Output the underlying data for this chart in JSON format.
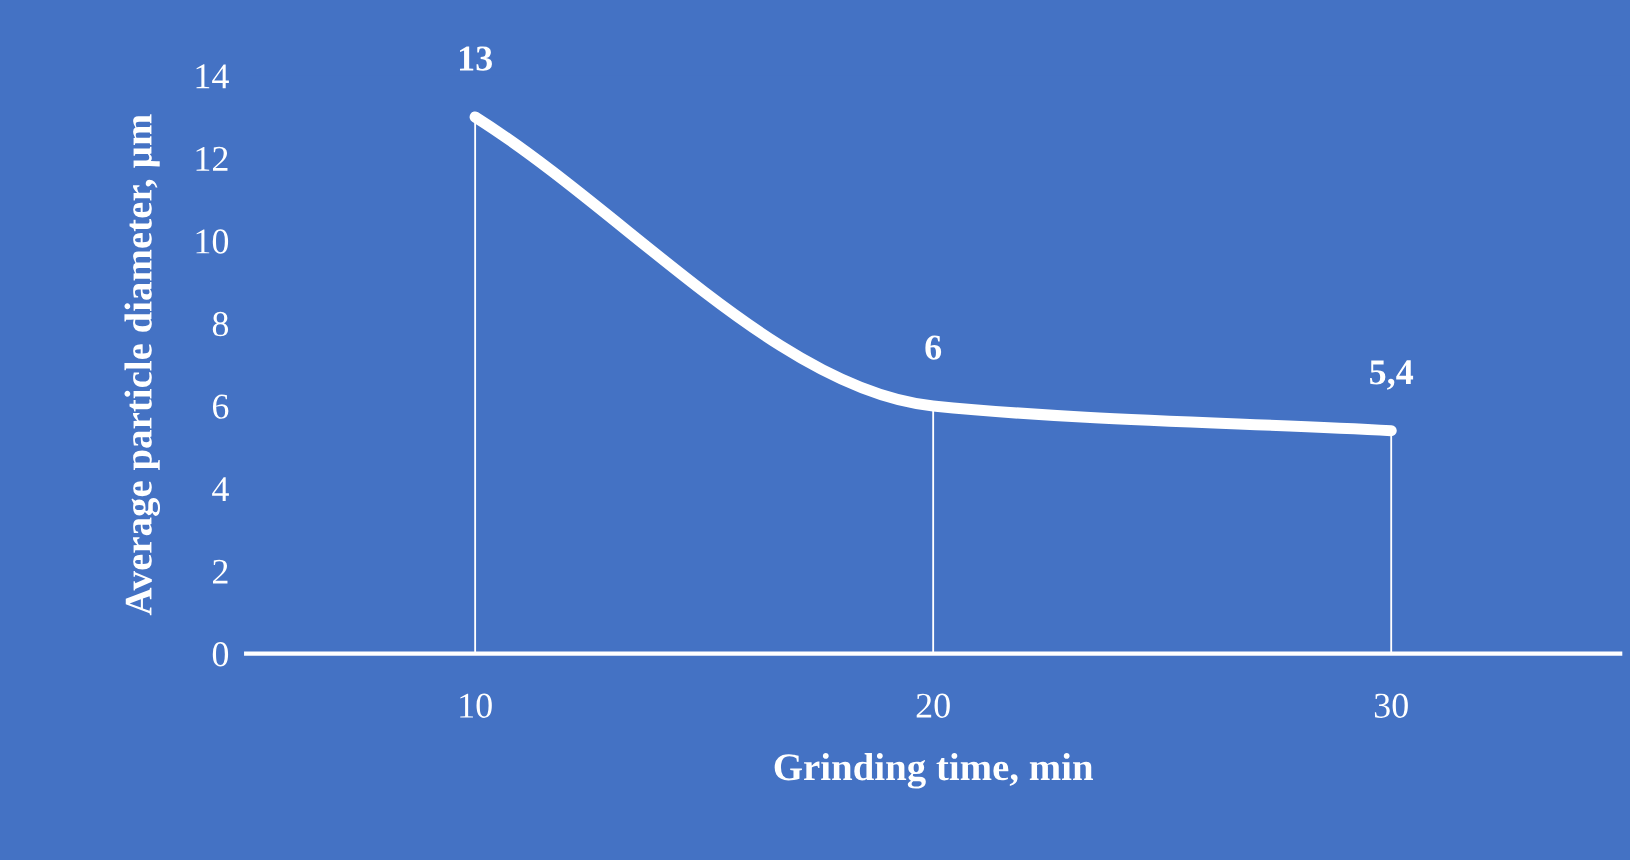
{
  "chart_data": {
    "type": "line",
    "xlabel": "Grinding time, min",
    "ylabel": "Average particle diameter, µm",
    "categories": [
      "10",
      "20",
      "30"
    ],
    "series": [
      {
        "type": "bar",
        "color": "#ffffff",
        "values": [
          13,
          6,
          5.4
        ]
      },
      {
        "color": "#ffffff",
        "values": [
          13,
          6,
          5.4
        ],
        "value_labels": [
          "13",
          "6",
          "5,4"
        ]
      }
    ],
    "ylim": [
      0,
      14
    ],
    "yticks": [
      0,
      2,
      4,
      6,
      8,
      10,
      12,
      14
    ],
    "grid": false,
    "legend": false,
    "marker": "none",
    "line_style": "solid"
  }
}
